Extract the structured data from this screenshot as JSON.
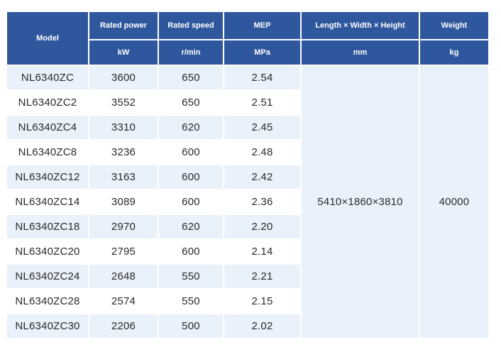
{
  "header": {
    "model_label": "Model",
    "cols": [
      {
        "label": "Rated power",
        "unit": "kW"
      },
      {
        "label": "Rated speed",
        "unit": "r/min"
      },
      {
        "label": "MEP",
        "unit": "MPa"
      },
      {
        "label": "Length × Width × Height",
        "unit": "mm"
      },
      {
        "label": "Weight",
        "unit": "kg"
      }
    ]
  },
  "chart_data": {
    "type": "table",
    "columns": [
      "Model",
      "Rated power (kW)",
      "Rated speed (r/min)",
      "MEP (MPa)",
      "Length × Width × Height (mm)",
      "Weight (kg)"
    ],
    "rows": [
      [
        "NL6340ZC",
        "3600",
        "650",
        "2.54"
      ],
      [
        "NL6340ZC2",
        "3552",
        "650",
        "2.51"
      ],
      [
        "NL6340ZC4",
        "3310",
        "620",
        "2.45"
      ],
      [
        "NL6340ZC8",
        "3236",
        "600",
        "2.48"
      ],
      [
        "NL6340ZC12",
        "3163",
        "600",
        "2.42"
      ],
      [
        "NL6340ZC14",
        "3089",
        "600",
        "2.36"
      ],
      [
        "NL6340ZC18",
        "2970",
        "620",
        "2.20"
      ],
      [
        "NL6340ZC20",
        "2795",
        "600",
        "2.14"
      ],
      [
        "NL6340ZC24",
        "2648",
        "550",
        "2.21"
      ],
      [
        "NL6340ZC28",
        "2574",
        "550",
        "2.15"
      ],
      [
        "NL6340ZC30",
        "2206",
        "500",
        "2.02"
      ]
    ],
    "merged": {
      "dimensions_mm": "5410×1860×3810",
      "weight_kg": "40000"
    }
  },
  "colors": {
    "header_bg": "#2f579d",
    "header_text": "#ffffff",
    "stripe_bg": "#e9f1fa",
    "row_bg": "#ffffff",
    "data_text": "#2a2a2a"
  }
}
